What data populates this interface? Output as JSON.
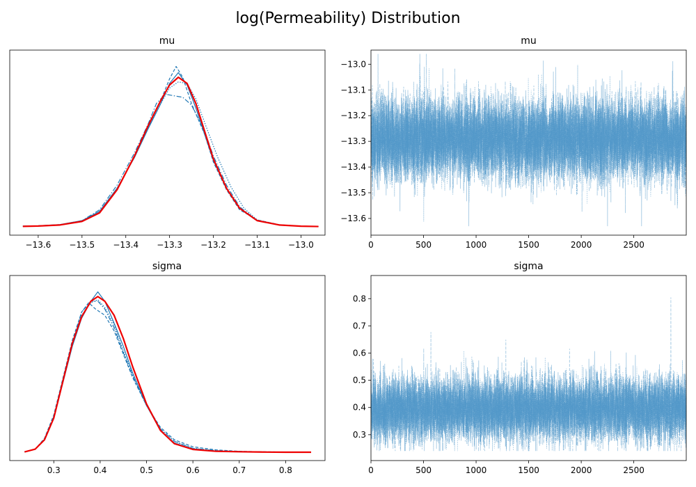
{
  "figure": {
    "title": "log(Permeability) Distribution"
  },
  "colors": {
    "chain": "#1f77b4",
    "trace": "#4a93c6",
    "overall": "#ee0000",
    "axes": "#000000"
  },
  "chart_data": [
    {
      "type": "line",
      "title": "mu",
      "xlabel": "",
      "ylabel": "",
      "xlim": [
        -13.665,
        -12.945
      ],
      "xticks": [
        -13.6,
        -13.5,
        -13.4,
        -13.3,
        -13.2,
        -13.1,
        -13.0
      ],
      "xtick_labels": [
        "−13.6",
        "−13.5",
        "−13.4",
        "−13.3",
        "−13.2",
        "−13.1",
        "−13.0"
      ],
      "yticks": [],
      "grid": false,
      "legend": false,
      "series": [
        {
          "style": "solid",
          "x": [
            -13.635,
            -13.6,
            -13.55,
            -13.5,
            -13.46,
            -13.42,
            -13.38,
            -13.35,
            -13.32,
            -13.3,
            -13.28,
            -13.26,
            -13.24,
            -13.22,
            -13.2,
            -13.17,
            -13.14,
            -13.1,
            -13.05,
            -13.0,
            -12.96
          ],
          "y": [
            0.005,
            0.007,
            0.015,
            0.04,
            0.1,
            0.25,
            0.45,
            0.63,
            0.8,
            0.93,
            1.0,
            0.92,
            0.77,
            0.6,
            0.43,
            0.25,
            0.12,
            0.04,
            0.012,
            0.004,
            0.002
          ]
        },
        {
          "style": "dashed",
          "x": [
            -13.635,
            -13.6,
            -13.55,
            -13.5,
            -13.46,
            -13.42,
            -13.38,
            -13.35,
            -13.32,
            -13.3,
            -13.285,
            -13.27,
            -13.25,
            -13.22,
            -13.2,
            -13.17,
            -13.14,
            -13.1,
            -13.05,
            -13.0,
            -12.96
          ],
          "y": [
            0.004,
            0.006,
            0.012,
            0.035,
            0.09,
            0.24,
            0.46,
            0.64,
            0.82,
            0.96,
            1.04,
            0.97,
            0.8,
            0.6,
            0.42,
            0.24,
            0.11,
            0.045,
            0.014,
            0.004,
            0.002
          ]
        },
        {
          "style": "dashdot",
          "x": [
            -13.635,
            -13.6,
            -13.55,
            -13.5,
            -13.46,
            -13.42,
            -13.38,
            -13.35,
            -13.33,
            -13.31,
            -13.29,
            -13.27,
            -13.25,
            -13.22,
            -13.2,
            -13.17,
            -13.14,
            -13.1,
            -13.05,
            -13.0,
            -12.96
          ],
          "y": [
            0.003,
            0.006,
            0.014,
            0.04,
            0.11,
            0.27,
            0.48,
            0.66,
            0.8,
            0.86,
            0.85,
            0.84,
            0.79,
            0.62,
            0.46,
            0.27,
            0.13,
            0.04,
            0.012,
            0.004,
            0.002
          ]
        },
        {
          "style": "dotted",
          "x": [
            -13.635,
            -13.6,
            -13.55,
            -13.5,
            -13.46,
            -13.42,
            -13.38,
            -13.35,
            -13.32,
            -13.3,
            -13.28,
            -13.26,
            -13.24,
            -13.21,
            -13.19,
            -13.16,
            -13.13,
            -13.1,
            -13.05,
            -13.0,
            -12.96
          ],
          "y": [
            0.004,
            0.006,
            0.013,
            0.038,
            0.1,
            0.25,
            0.46,
            0.64,
            0.8,
            0.9,
            0.94,
            0.93,
            0.83,
            0.6,
            0.45,
            0.26,
            0.12,
            0.045,
            0.013,
            0.004,
            0.002
          ]
        },
        {
          "style": "overall",
          "x": [
            -13.635,
            -13.6,
            -13.55,
            -13.5,
            -13.46,
            -13.42,
            -13.38,
            -13.35,
            -13.32,
            -13.3,
            -13.28,
            -13.26,
            -13.24,
            -13.22,
            -13.2,
            -13.17,
            -13.14,
            -13.1,
            -13.05,
            -13.0,
            -12.96
          ],
          "y": [
            0.003,
            0.005,
            0.012,
            0.035,
            0.09,
            0.24,
            0.46,
            0.65,
            0.82,
            0.92,
            0.97,
            0.93,
            0.8,
            0.62,
            0.44,
            0.25,
            0.12,
            0.04,
            0.012,
            0.004,
            0.002
          ]
        }
      ]
    },
    {
      "type": "line",
      "title": "mu",
      "xlabel": "",
      "ylabel": "",
      "xlim": [
        0,
        2999
      ],
      "ylim": [
        -13.665,
        -12.945
      ],
      "xticks": [
        0,
        500,
        1000,
        1500,
        2000,
        2500
      ],
      "xtick_labels": [
        "0",
        "500",
        "1000",
        "1500",
        "2000",
        "2500"
      ],
      "yticks": [
        -13.6,
        -13.5,
        -13.4,
        -13.3,
        -13.2,
        -13.1,
        -13.0
      ],
      "ytick_labels": [
        "−13.6",
        "−13.5",
        "−13.4",
        "−13.3",
        "−13.2",
        "−13.1",
        "−13.0"
      ],
      "grid": false,
      "legend": false,
      "draws": 3000,
      "chains": 4,
      "center": -13.29,
      "spread": 0.08,
      "min": -13.63,
      "max": -12.96,
      "seeds": [
        11,
        23,
        37,
        53
      ]
    },
    {
      "type": "line",
      "title": "sigma",
      "xlabel": "",
      "ylabel": "",
      "xlim": [
        0.205,
        0.885
      ],
      "xticks": [
        0.3,
        0.4,
        0.5,
        0.6,
        0.7,
        0.8
      ],
      "xtick_labels": [
        "0.3",
        "0.4",
        "0.5",
        "0.6",
        "0.7",
        "0.8"
      ],
      "yticks": [],
      "grid": false,
      "legend": false,
      "series": [
        {
          "style": "solid",
          "x": [
            0.237,
            0.26,
            0.28,
            0.3,
            0.32,
            0.34,
            0.36,
            0.38,
            0.395,
            0.41,
            0.43,
            0.45,
            0.47,
            0.5,
            0.53,
            0.56,
            0.6,
            0.65,
            0.7,
            0.75,
            0.8,
            0.855
          ],
          "y": [
            0.002,
            0.02,
            0.08,
            0.22,
            0.45,
            0.68,
            0.86,
            0.97,
            1.03,
            0.97,
            0.83,
            0.68,
            0.51,
            0.3,
            0.14,
            0.06,
            0.02,
            0.008,
            0.004,
            0.002,
            0.001,
            0.0
          ]
        },
        {
          "style": "dashed",
          "x": [
            0.237,
            0.26,
            0.28,
            0.3,
            0.32,
            0.34,
            0.36,
            0.375,
            0.39,
            0.41,
            0.43,
            0.45,
            0.47,
            0.5,
            0.53,
            0.56,
            0.6,
            0.65,
            0.7,
            0.75,
            0.8,
            0.855
          ],
          "y": [
            0.002,
            0.02,
            0.09,
            0.24,
            0.48,
            0.72,
            0.9,
            0.96,
            0.92,
            0.88,
            0.78,
            0.63,
            0.48,
            0.3,
            0.16,
            0.08,
            0.035,
            0.015,
            0.006,
            0.003,
            0.001,
            0.0
          ]
        },
        {
          "style": "dashdot",
          "x": [
            0.237,
            0.26,
            0.28,
            0.3,
            0.32,
            0.34,
            0.36,
            0.38,
            0.395,
            0.41,
            0.43,
            0.45,
            0.47,
            0.5,
            0.53,
            0.56,
            0.6,
            0.65,
            0.7,
            0.75,
            0.8,
            0.855
          ],
          "y": [
            0.002,
            0.018,
            0.085,
            0.23,
            0.47,
            0.7,
            0.9,
            0.97,
            0.97,
            0.92,
            0.8,
            0.64,
            0.49,
            0.3,
            0.15,
            0.07,
            0.025,
            0.01,
            0.005,
            0.002,
            0.001,
            0.0
          ]
        },
        {
          "style": "dotted",
          "x": [
            0.237,
            0.26,
            0.28,
            0.3,
            0.32,
            0.34,
            0.36,
            0.38,
            0.395,
            0.41,
            0.43,
            0.45,
            0.47,
            0.5,
            0.53,
            0.56,
            0.6,
            0.65,
            0.7,
            0.75,
            0.8,
            0.855
          ],
          "y": [
            0.002,
            0.02,
            0.085,
            0.22,
            0.46,
            0.69,
            0.88,
            0.96,
            0.98,
            0.93,
            0.82,
            0.65,
            0.5,
            0.31,
            0.15,
            0.07,
            0.025,
            0.01,
            0.005,
            0.002,
            0.001,
            0.0
          ]
        },
        {
          "style": "overall",
          "x": [
            0.237,
            0.26,
            0.28,
            0.3,
            0.32,
            0.34,
            0.36,
            0.38,
            0.395,
            0.41,
            0.43,
            0.45,
            0.47,
            0.5,
            0.53,
            0.56,
            0.6,
            0.65,
            0.7,
            0.75,
            0.8,
            0.855
          ],
          "y": [
            0.002,
            0.02,
            0.08,
            0.22,
            0.46,
            0.7,
            0.87,
            0.97,
            1.0,
            0.97,
            0.88,
            0.73,
            0.55,
            0.31,
            0.14,
            0.055,
            0.018,
            0.006,
            0.003,
            0.001,
            0.0,
            0.0
          ]
        }
      ]
    },
    {
      "type": "line",
      "title": "sigma",
      "xlabel": "",
      "ylabel": "",
      "xlim": [
        0,
        2999
      ],
      "ylim": [
        0.205,
        0.885
      ],
      "xticks": [
        0,
        500,
        1000,
        1500,
        2000,
        2500
      ],
      "xtick_labels": [
        "0",
        "500",
        "1000",
        "1500",
        "2000",
        "2500"
      ],
      "yticks": [
        0.3,
        0.4,
        0.5,
        0.6,
        0.7,
        0.8
      ],
      "ytick_labels": [
        "0.3",
        "0.4",
        "0.5",
        "0.6",
        "0.7",
        "0.8"
      ],
      "grid": false,
      "legend": false,
      "draws": 3000,
      "chains": 4,
      "center": 0.395,
      "spread": 0.06,
      "min": 0.24,
      "max": 0.86,
      "seeds": [
        71,
        89,
        97,
        113
      ]
    }
  ]
}
